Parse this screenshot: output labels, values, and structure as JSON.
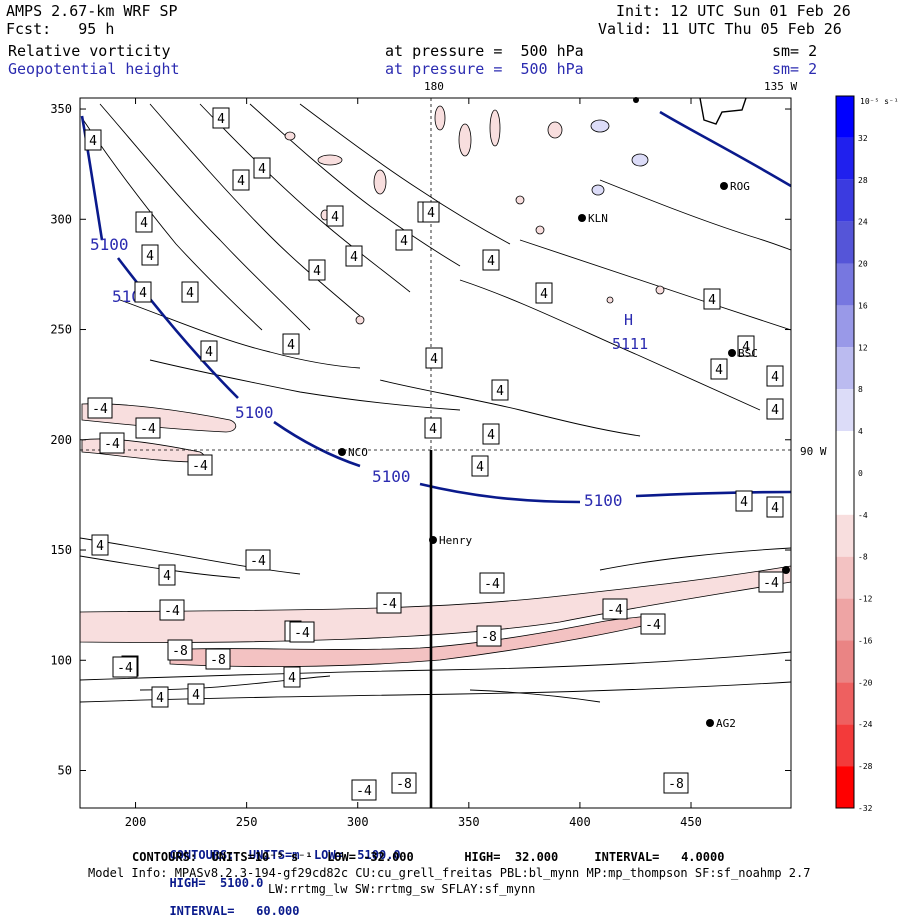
{
  "header": {
    "model": "AMPS 2.67-km WRF SP",
    "init": "Init: 12 UTC Sun 01 Feb 26",
    "fcst": "Fcst:   95 h",
    "valid": "Valid: 11 UTC Thu 05 Feb 26",
    "field1": "Relative vorticity",
    "field2": "Geopotential height",
    "level1": "at pressure =  500 hPa",
    "level2": "at pressure =  500 hPa",
    "sm1": "sm= 2",
    "sm2": "sm= 2",
    "top_lon": "180",
    "top_right_lon": "135 W",
    "right_lat": "90 W"
  },
  "axes": {
    "x_ticks": [
      "200",
      "250",
      "300",
      "350",
      "400",
      "450"
    ],
    "y_ticks": [
      "50",
      "100",
      "150",
      "200",
      "250",
      "300",
      "350"
    ]
  },
  "colorbar": {
    "unit": "10⁻⁵ s⁻¹",
    "labels": [
      "32",
      "28",
      "24",
      "20",
      "16",
      "12",
      "8",
      "4",
      "0",
      "-4",
      "-8",
      "-12",
      "-16",
      "-20",
      "-24",
      "-28",
      "-32"
    ],
    "colors": [
      "#0000ff",
      "#2020ee",
      "#3b3be0",
      "#5555d8",
      "#7777e0",
      "#9999e8",
      "#bbbbf0",
      "#dcdcf8",
      "#ffffff",
      "#ffffff",
      "#f8dede",
      "#f3c2c2",
      "#eea4a4",
      "#ea8484",
      "#ee6060",
      "#f33a3a",
      "#ff0000"
    ]
  },
  "stations": [
    {
      "name": "NCO"
    },
    {
      "name": "Henry"
    },
    {
      "name": "ROG"
    },
    {
      "name": "KLN"
    },
    {
      "name": "BSC"
    },
    {
      "name": "AG2"
    }
  ],
  "height_labels": [
    "5100",
    "5100",
    "5100",
    "5100",
    "5100"
  ],
  "high_label": {
    "letter": "H",
    "value": "5111"
  },
  "vort_labels": [
    "4",
    "4",
    "4",
    "4",
    "4",
    "4",
    "4",
    "4",
    "4",
    "4",
    "4",
    "4",
    "4",
    "4",
    "4",
    "4",
    "4",
    "4",
    "4",
    "4",
    "4",
    "4",
    "4",
    "4",
    "4",
    "4",
    "4",
    "4",
    "4",
    "4",
    "4",
    "4",
    "4",
    "4",
    "4",
    "4",
    "4",
    "-4",
    "-4",
    "-4",
    "-4",
    "-4",
    "-4",
    "-4",
    "-4",
    "-4",
    "-4",
    "-4",
    "-4",
    "-4",
    "-4",
    "-8",
    "-8",
    "-8",
    "-8",
    "-8"
  ],
  "footer": {
    "line1_pre": "CONTOURS:  UNITS=m  LOW=  5100.0",
    "line1_high": "HIGH=  5100.0",
    "line1_int": "INTERVAL=   60.000",
    "line2": "CONTOURS:  UNITS=10⁻⁵ s⁻¹  LOW= -32.000       HIGH=  32.000     INTERVAL=   4.0000",
    "line3": "Model Info: MPASv8.2.3-194-gf29cd82c CU:cu_grell_freitas PBL:bl_mynn MP:mp_thompson SF:sf_noahmp 2.7",
    "line4": "LW:rrtmg_lw SW:rrtmg_sw SFLAY:sf_mynn"
  }
}
